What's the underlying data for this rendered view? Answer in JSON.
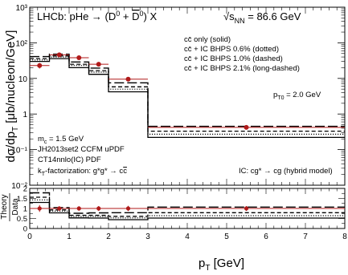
{
  "chart_data": {
    "type": "step-histogram with data points and ratio panel",
    "upper_panel": {
      "ylabel": "dσ/dp_T  [μb/nucleon/GeV]",
      "yscale": "log",
      "ylim": [
        0.01,
        1000
      ],
      "ytick_labels": [
        "10⁻²",
        "10⁻¹",
        "1",
        "10",
        "10²",
        "10³"
      ],
      "xlim": [
        0,
        8
      ],
      "bin_edges": [
        0,
        0.5,
        1,
        1.5,
        2,
        3,
        8
      ],
      "series": [
        {
          "name": "cc̄ only (solid)",
          "style": "solid",
          "values": [
            30,
            36,
            20,
            13,
            4.2,
            0.22
          ]
        },
        {
          "name": "cc̄ + IC BHPS 0.6% (dotted)",
          "style": "dotted",
          "values": [
            33,
            40,
            23,
            15,
            5.0,
            0.27
          ]
        },
        {
          "name": "cc̄ + IC BHPS 1.0% (dashed)",
          "style": "dashed",
          "values": [
            36,
            43,
            25,
            16.5,
            5.8,
            0.33
          ]
        },
        {
          "name": "cc̄ + IC BHPS 2.1% (long-dashed)",
          "style": "long-dashed",
          "values": [
            41,
            48,
            29,
            19.5,
            7.5,
            0.45
          ]
        }
      ],
      "data_points": {
        "color": "#b01a1a",
        "x": [
          0.25,
          0.75,
          1.25,
          1.75,
          2.5,
          5.5
        ],
        "y": [
          23,
          46,
          38,
          25,
          9.5,
          0.42
        ],
        "yerr": [
          4,
          5,
          4,
          3,
          1.2,
          0.05
        ]
      },
      "texts": {
        "experiment": "LHCb: pHe → (D⁰ + D̄⁰) X",
        "energy": "√s_NN = 86.6 GeV",
        "legend": [
          "cc̄ only (solid)",
          "cc̄ + IC BHPS 0.6% (dotted)",
          "cc̄ + IC BHPS 1.0% (dashed)",
          "cc̄ + IC BHPS 2.1% (long-dashed)"
        ],
        "pt0": "p_T0 = 2.0 GeV",
        "mc": "m_c = 1.5 GeV",
        "updf": "JH2013set2 CCFM uPDF",
        "pdf": "CT14nnlo(IC) PDF",
        "kt": "k_T-factorization: g*g* → cc̄",
        "ic": "IC: cg* → cg (hybrid model)"
      }
    },
    "lower_panel": {
      "ylabel_top": "Theory",
      "ylabel_bottom": "Data",
      "ylim": [
        0,
        2
      ],
      "ytick_labels": [
        "0",
        "0.5",
        "1",
        "1.5",
        "2"
      ],
      "series": [
        {
          "style": "solid",
          "values": [
            1.3,
            0.78,
            0.53,
            0.52,
            0.44,
            0.52
          ]
        },
        {
          "style": "dotted",
          "values": [
            1.43,
            0.87,
            0.6,
            0.6,
            0.53,
            0.64
          ]
        },
        {
          "style": "dashed",
          "values": [
            1.56,
            0.93,
            0.66,
            0.66,
            0.61,
            0.79
          ]
        },
        {
          "style": "long-dashed",
          "values": [
            1.78,
            1.04,
            0.76,
            0.78,
            0.79,
            1.07
          ]
        }
      ],
      "data_points": {
        "x": [
          0.25,
          0.75,
          1.25,
          1.75,
          2.5,
          5.5
        ],
        "y": [
          1,
          1,
          1,
          1,
          1,
          1
        ],
        "yerr": [
          0.17,
          0.11,
          0.11,
          0.12,
          0.13,
          0.12
        ]
      }
    },
    "xlabel": "p_T   [GeV]",
    "xtick_labels": [
      "0",
      "1",
      "2",
      "3",
      "4",
      "5",
      "6",
      "7",
      "8"
    ],
    "grid": false
  }
}
